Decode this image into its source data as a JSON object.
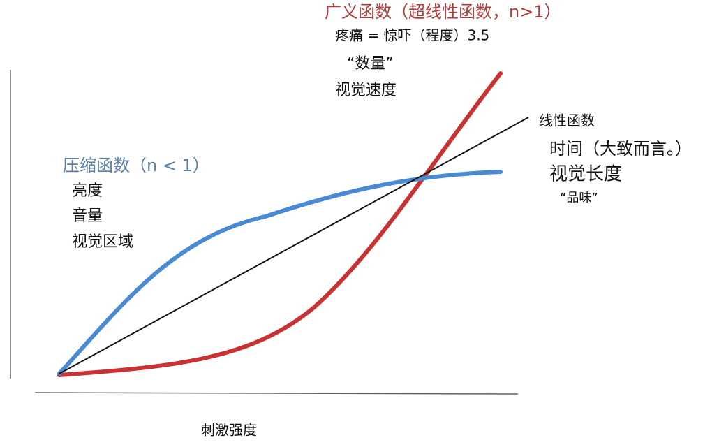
{
  "x_axis_label": "刺激强度",
  "curves": [
    {
      "label": "广义函数（超线性函数，n>1）",
      "examples": [
        "疼痛 = 惊吓（程度）3.5",
        "“数量”",
        "视觉速度"
      ]
    },
    {
      "label": "线性函数",
      "examples": [
        "时间（大致而言。）",
        "视觉长度",
        "“品味”"
      ]
    },
    {
      "label": "压缩函数（n < 1）",
      "examples": [
        "亮度",
        "音量",
        "视觉区域"
      ]
    }
  ]
}
